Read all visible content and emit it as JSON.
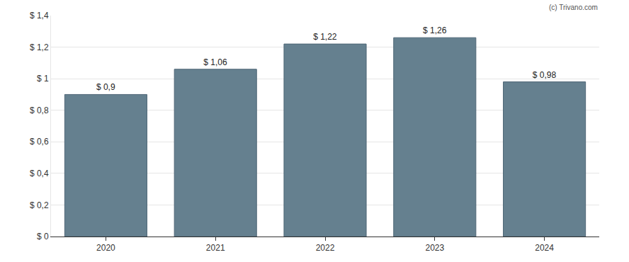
{
  "chart_data": {
    "type": "bar",
    "categories": [
      "2020",
      "2021",
      "2022",
      "2023",
      "2024"
    ],
    "values": [
      0.9,
      1.06,
      1.22,
      1.26,
      0.98
    ],
    "value_labels": [
      "$ 0,9",
      "$ 1,06",
      "$ 1,22",
      "$ 1,26",
      "$ 0,98"
    ],
    "data_labels": true,
    "color": "#65808f",
    "ylim": [
      0,
      1.4
    ],
    "yticks": [
      {
        "value": 0,
        "label": "$ 0"
      },
      {
        "value": 0.2,
        "label": "$ 0,2"
      },
      {
        "value": 0.4,
        "label": "$ 0,4"
      },
      {
        "value": 0.6,
        "label": "$ 0,6"
      },
      {
        "value": 0.8,
        "label": "$ 0,8"
      },
      {
        "value": 1,
        "label": "$ 1"
      },
      {
        "value": 1.2,
        "label": "$ 1,2"
      },
      {
        "value": 1.4,
        "label": "$ 1,4"
      }
    ],
    "grid": true,
    "annotations": [
      "(c) Trivano.com"
    ]
  }
}
